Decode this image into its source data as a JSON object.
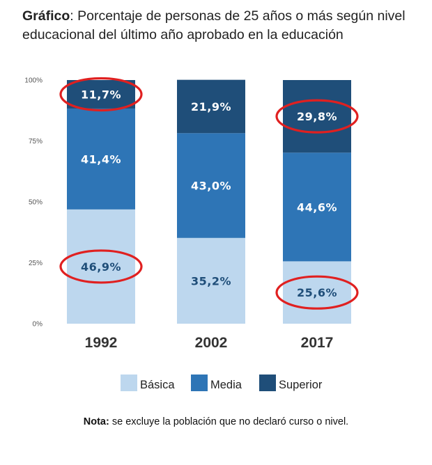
{
  "header": {
    "title_bold": "Gráfico",
    "title_rest": ": Porcentaje de personas de 25 años o más según nivel educacional del último año aprobado en la educación"
  },
  "footer": {
    "note_bold": "Nota:",
    "note_rest": " se excluye la población que no declaró curso o nivel."
  },
  "colors": {
    "basica": "#bdd7ee",
    "media": "#2e75b6",
    "superior": "#1f4e79",
    "highlight": "#e02020"
  },
  "chart_data": {
    "type": "bar",
    "stacked": true,
    "categories": [
      "1992",
      "2002",
      "2017"
    ],
    "series": [
      {
        "name": "Básica",
        "values": [
          46.9,
          35.2,
          25.6
        ],
        "labels": [
          "46,9%",
          "35,2%",
          "25,6%"
        ]
      },
      {
        "name": "Media",
        "values": [
          41.4,
          43.0,
          44.6
        ],
        "labels": [
          "41,4%",
          "43,0%",
          "44,6%"
        ]
      },
      {
        "name": "Superior",
        "values": [
          11.7,
          21.9,
          29.8
        ],
        "labels": [
          "11,7%",
          "21,9%",
          "29,8%"
        ]
      }
    ],
    "ylim": [
      0,
      100
    ],
    "yticks": [
      "0%",
      "25%",
      "50%",
      "75%",
      "100%"
    ],
    "legend_position": "bottom",
    "highlighted": [
      {
        "category": "1992",
        "series": "Superior"
      },
      {
        "category": "1992",
        "series": "Básica"
      },
      {
        "category": "2017",
        "series": "Superior"
      },
      {
        "category": "2017",
        "series": "Básica"
      }
    ]
  }
}
